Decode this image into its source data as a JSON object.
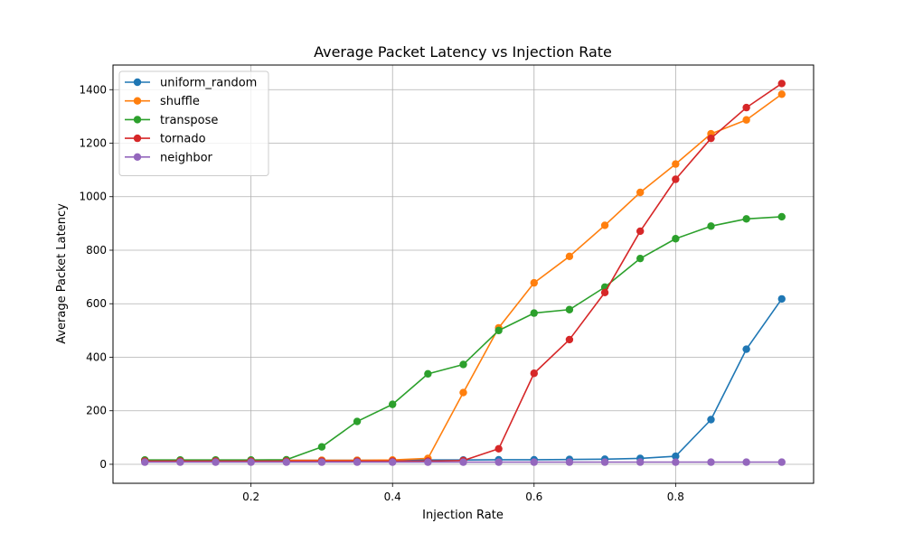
{
  "chart_data": {
    "type": "line",
    "title": "Average Packet Latency vs Injection Rate",
    "xlabel": "Injection Rate",
    "ylabel": "Average Packet Latency",
    "xlim": [
      0.005,
      0.995
    ],
    "ylim": [
      -71,
      1492
    ],
    "grid": true,
    "legend_position": "top-left",
    "x": [
      0.05,
      0.1,
      0.15,
      0.2,
      0.25,
      0.3,
      0.35,
      0.4,
      0.45,
      0.5,
      0.55,
      0.6,
      0.65,
      0.7,
      0.75,
      0.8,
      0.85,
      0.9,
      0.95
    ],
    "x_ticks": [
      0.2,
      0.4,
      0.6,
      0.8
    ],
    "x_tick_labels": [
      "0.2",
      "0.4",
      "0.6",
      "0.8"
    ],
    "y_ticks": [
      0,
      200,
      400,
      600,
      800,
      1000,
      1200,
      1400
    ],
    "y_tick_labels": [
      "0",
      "200",
      "400",
      "600",
      "800",
      "1000",
      "1200",
      "1400"
    ],
    "series": [
      {
        "name": "uniform_random",
        "color": "#1f77b4",
        "values": [
          15,
          15,
          15,
          15,
          15,
          15,
          15,
          15,
          16,
          16,
          17,
          17,
          18,
          19,
          22,
          30,
          167,
          430,
          618
        ]
      },
      {
        "name": "shuffle",
        "color": "#ff7f0e",
        "values": [
          15,
          15,
          15,
          15,
          15,
          15,
          15,
          16,
          22,
          268,
          510,
          678,
          777,
          893,
          1016,
          1122,
          1235,
          1287,
          1383
        ]
      },
      {
        "name": "transpose",
        "color": "#2ca02c",
        "values": [
          16,
          16,
          16,
          16,
          17,
          65,
          160,
          224,
          338,
          373,
          500,
          565,
          578,
          662,
          769,
          843,
          890,
          917,
          925
        ]
      },
      {
        "name": "tornado",
        "color": "#d62728",
        "values": [
          12,
          12,
          12,
          12,
          12,
          12,
          12,
          12,
          12,
          14,
          58,
          340,
          466,
          642,
          871,
          1065,
          1218,
          1333,
          1423
        ]
      },
      {
        "name": "neighbor",
        "color": "#9467bd",
        "values": [
          8,
          8,
          8,
          8,
          8,
          8,
          8,
          8,
          8,
          8,
          8,
          8,
          8,
          8,
          8,
          8,
          8,
          8,
          8
        ]
      }
    ]
  }
}
